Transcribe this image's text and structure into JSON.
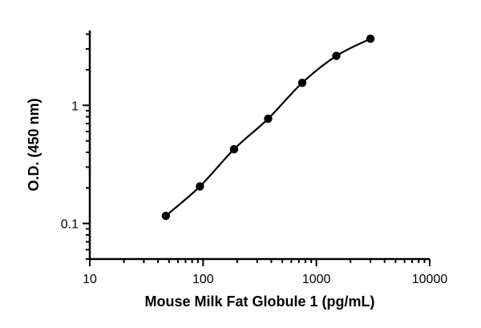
{
  "chart_data": {
    "type": "scatter",
    "xlabel": "Mouse Milk Fat Globule 1 (pg/mL)",
    "ylabel": "O.D. (450 nm)",
    "x_scale": "log",
    "y_scale": "log",
    "xlim": [
      10,
      10000
    ],
    "ylim": [
      0.05,
      4.3
    ],
    "x_ticks": [
      {
        "value": 10,
        "label": "10"
      },
      {
        "value": 100,
        "label": "100"
      },
      {
        "value": 1000,
        "label": "1000"
      },
      {
        "value": 10000,
        "label": "10000"
      }
    ],
    "y_ticks": [
      {
        "value": 0.1,
        "label": "0.1"
      },
      {
        "value": 1,
        "label": "1"
      }
    ],
    "grid": false,
    "legend": "none",
    "series": [
      {
        "points": [
          {
            "x": 46.9,
            "y": 0.116
          },
          {
            "x": 93.75,
            "y": 0.206
          },
          {
            "x": 187.5,
            "y": 0.425
          },
          {
            "x": 375,
            "y": 0.77
          },
          {
            "x": 750,
            "y": 1.55
          },
          {
            "x": 1500,
            "y": 2.62
          },
          {
            "x": 3000,
            "y": 3.66
          }
        ],
        "fit": "curve"
      }
    ],
    "colors": {
      "marker": "#000000",
      "line": "#000000"
    }
  }
}
